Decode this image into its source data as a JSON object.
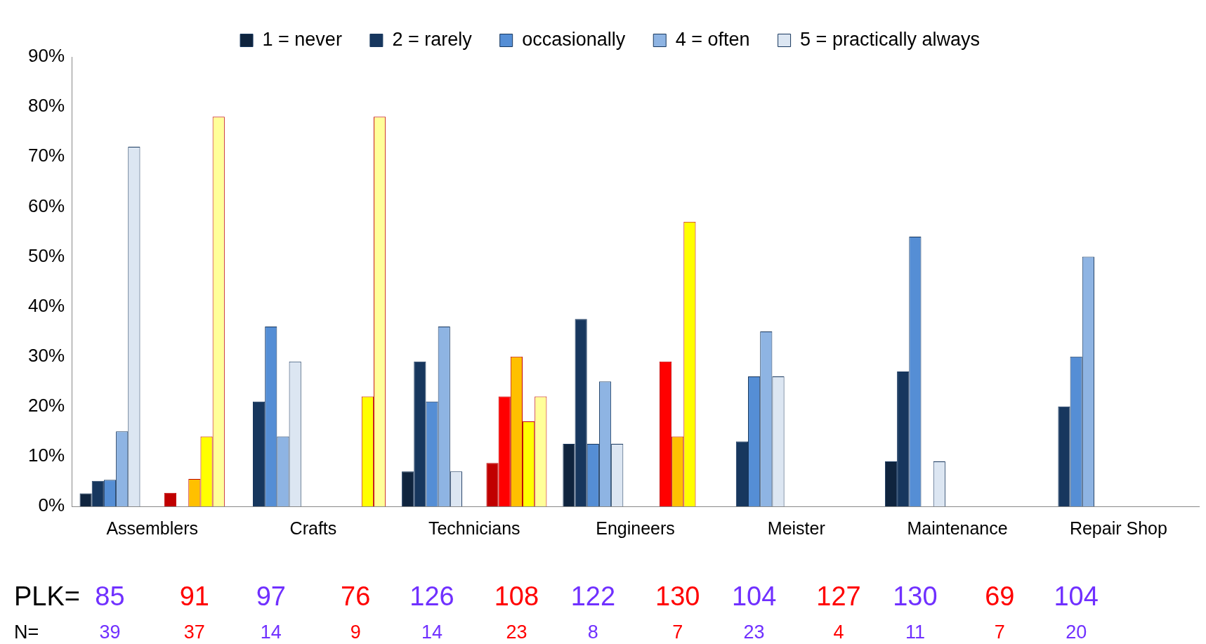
{
  "chart_data": {
    "type": "bar",
    "categories": [
      "Assemblers",
      "Crafts",
      "Technicians",
      "Engineers",
      "Meister",
      "Maintenance",
      "Repair Shop"
    ],
    "series": [
      {
        "name": "1 = never",
        "color": "#0f243e",
        "values": [
          2.6,
          0,
          7,
          12.5,
          0,
          9,
          null
        ]
      },
      {
        "name": "2 = rarely",
        "color": "#17375e",
        "values": [
          5.1,
          21,
          29,
          37.5,
          13,
          27,
          20
        ]
      },
      {
        "name": "occasionally",
        "color": "#558ed5",
        "values": [
          5.3,
          36,
          21,
          12.5,
          26,
          54,
          30
        ]
      },
      {
        "name": "4 = often",
        "color": "#8eb4e3",
        "values": [
          15,
          14,
          36,
          25,
          35,
          0,
          50
        ]
      },
      {
        "name": "5 = practically always",
        "color": "#dce6f2",
        "values": [
          72,
          29,
          7,
          12.5,
          26,
          9,
          0
        ]
      },
      {
        "color": "#c00000",
        "values": [
          2.7,
          0,
          8.7,
          0,
          null,
          null,
          null
        ]
      },
      {
        "color": "#ff0000",
        "values": [
          0,
          0,
          22,
          29,
          null,
          null,
          null
        ]
      },
      {
        "color": "#ffc000",
        "values": [
          5.5,
          0,
          30,
          14,
          null,
          null,
          null
        ]
      },
      {
        "color": "#ffff00",
        "values": [
          14,
          22,
          17,
          57,
          null,
          null,
          null
        ]
      },
      {
        "color": "#ffff99",
        "values": [
          78,
          78,
          22,
          0,
          null,
          null,
          null
        ]
      }
    ],
    "ylim": [
      0,
      90
    ],
    "yticks": [
      {
        "value": 0,
        "label": "0%"
      },
      {
        "value": 10,
        "label": "10%"
      },
      {
        "value": 20,
        "label": "20%"
      },
      {
        "value": 30,
        "label": "30%"
      },
      {
        "value": 40,
        "label": "40%"
      },
      {
        "value": 50,
        "label": "50%"
      },
      {
        "value": 60,
        "label": "60%"
      },
      {
        "value": 70,
        "label": "70%"
      },
      {
        "value": 80,
        "label": "80%"
      },
      {
        "value": 90,
        "label": "90%"
      }
    ],
    "grid": false,
    "legend": "top",
    "annotations": [
      "PLK=",
      "85",
      "91",
      "97",
      "76",
      "126",
      "108",
      "122",
      "130",
      "104",
      "127",
      "130",
      "69",
      "104",
      "N=",
      "39",
      "37",
      "14",
      "9",
      "14",
      "23",
      "8",
      "7",
      "23",
      "4",
      "11",
      "7",
      "20"
    ]
  }
}
